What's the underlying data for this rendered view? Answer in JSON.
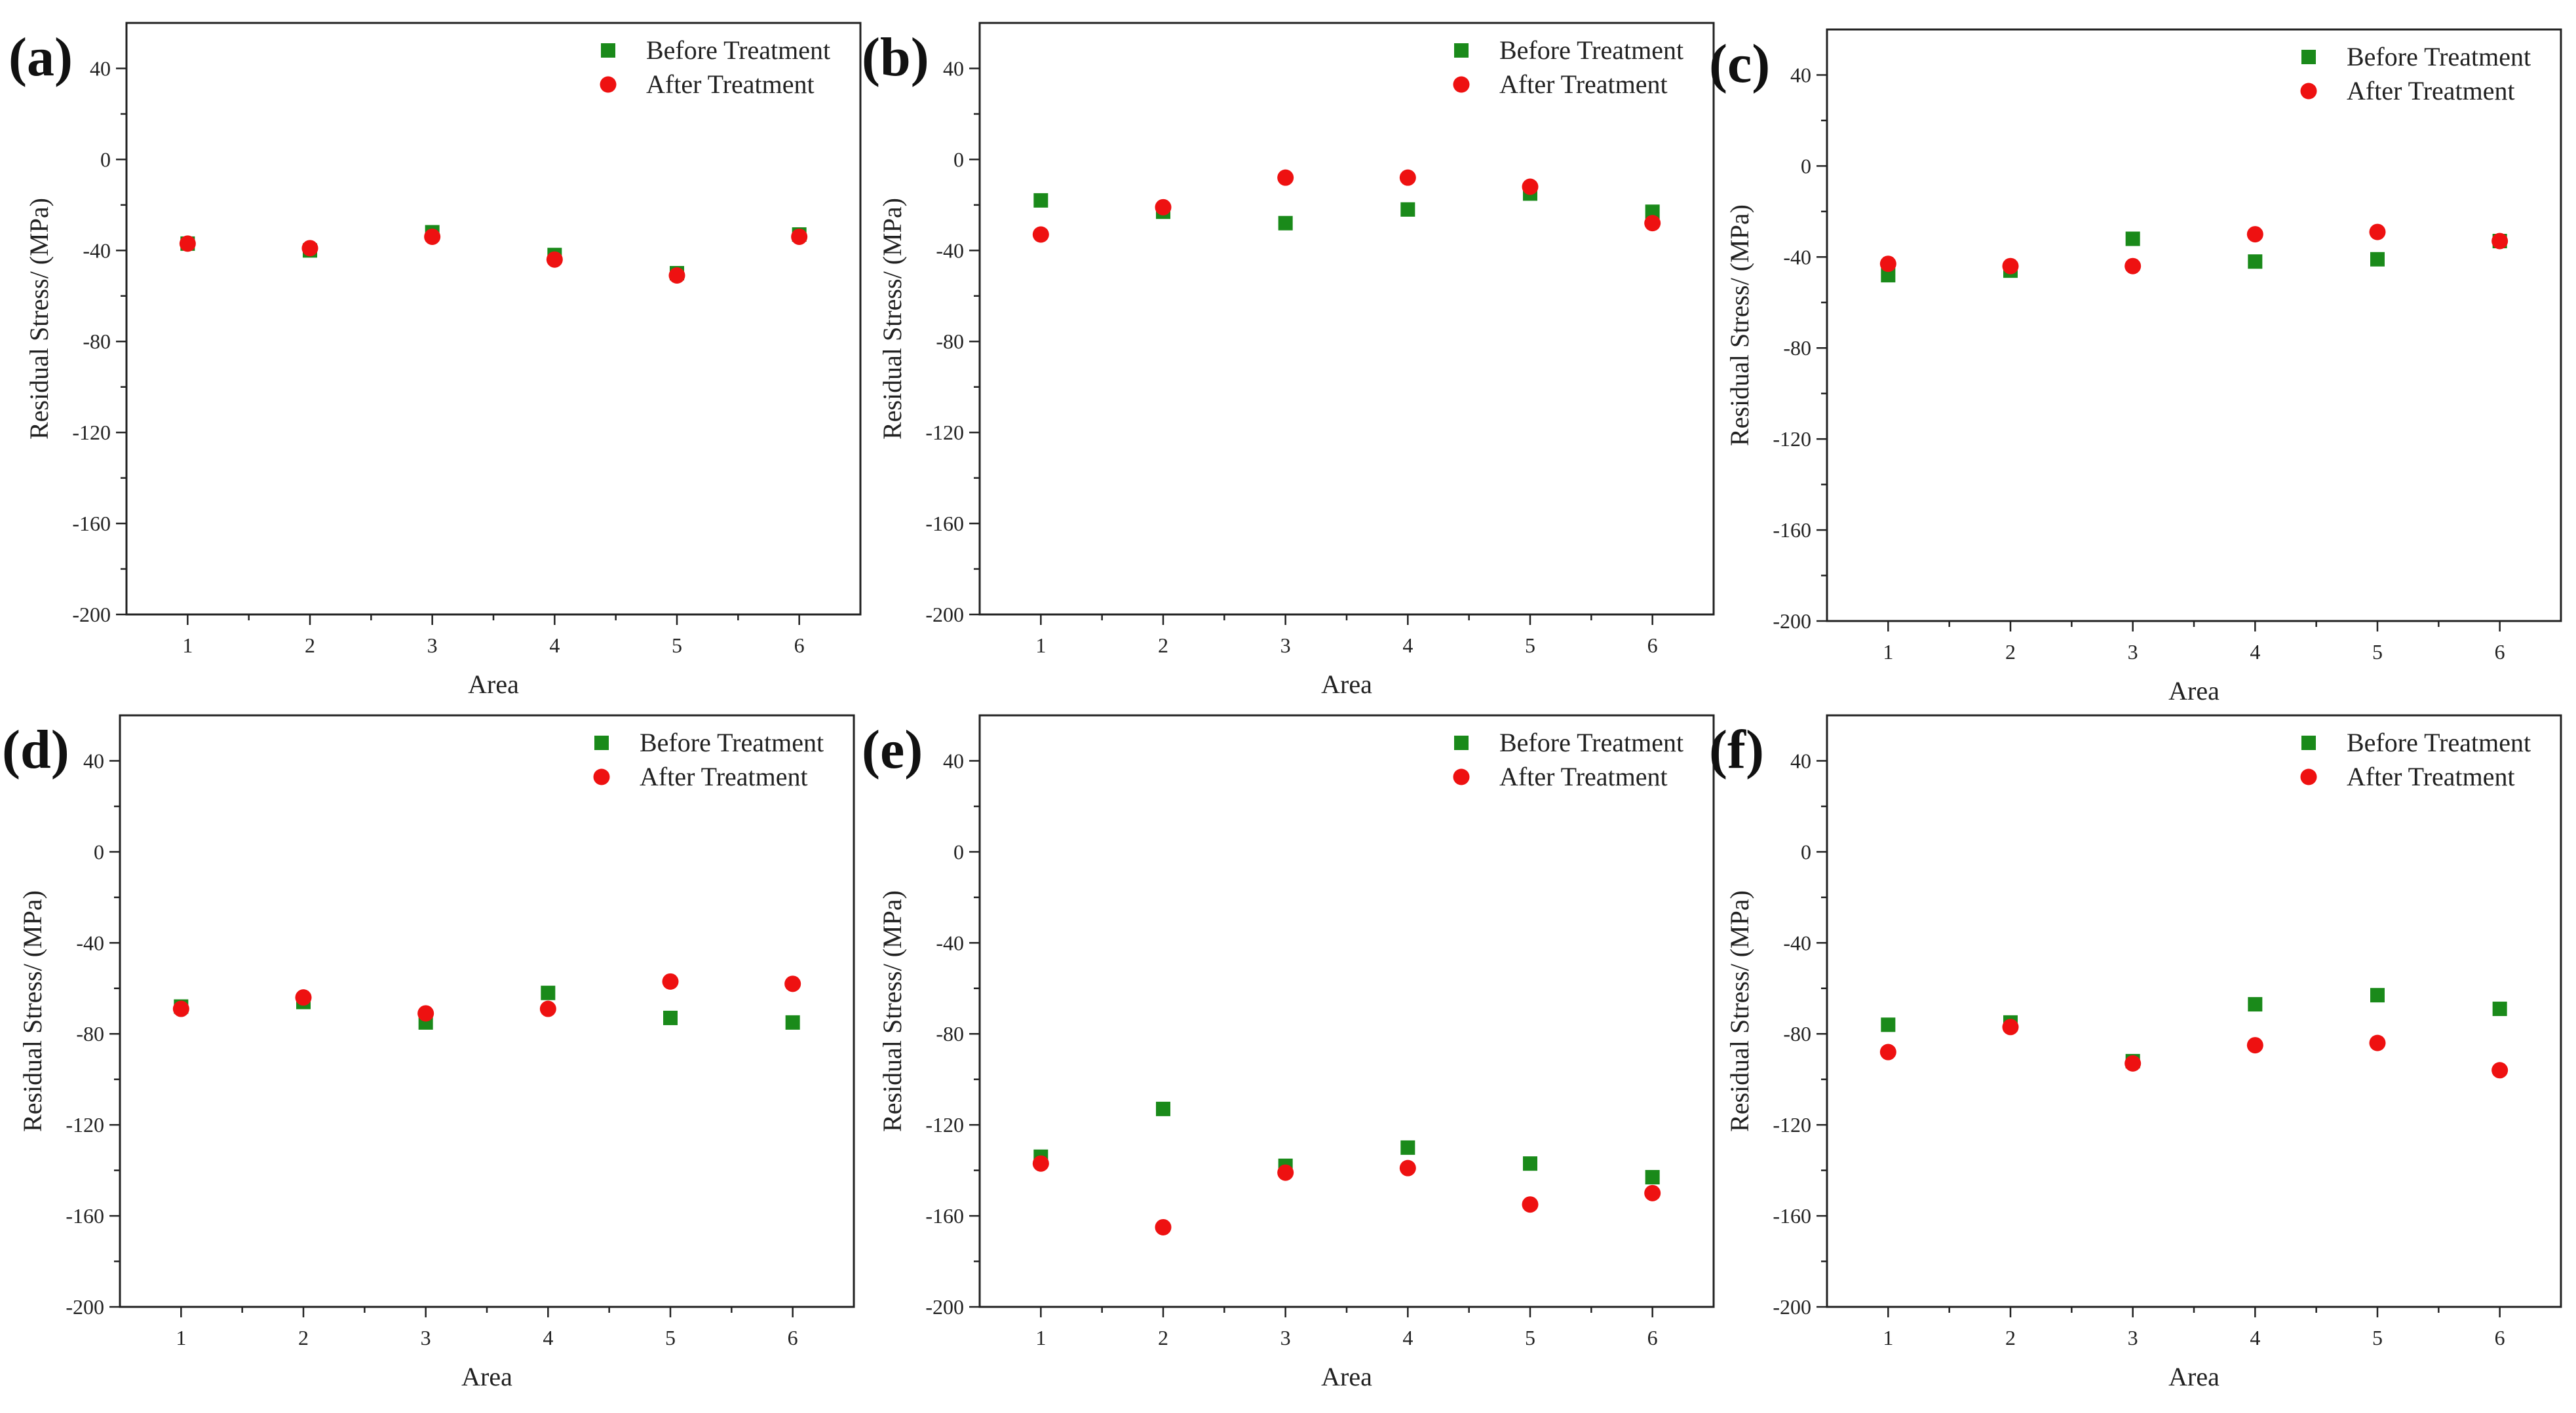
{
  "colors": {
    "before": "#1a8a1a",
    "after": "#ee1111"
  },
  "legend": {
    "before": "Before Treatment",
    "after": "After Treatment"
  },
  "chart_data": [
    {
      "label": "(a)",
      "type": "scatter",
      "xlabel": "Area",
      "ylabel": "Residual Stress/ (MPa)",
      "x": [
        1,
        2,
        3,
        4,
        5,
        6
      ],
      "xlim": [
        0.5,
        6.5
      ],
      "ylim": [
        -200,
        60
      ],
      "yticks": [
        40,
        0,
        -40,
        -80,
        -120,
        -160,
        -200
      ],
      "xticks": [
        1,
        2,
        3,
        4,
        5,
        6
      ],
      "series": [
        {
          "name": "Before Treatment",
          "marker": "square",
          "values": [
            -37,
            -40,
            -32,
            -42,
            -50,
            -33
          ]
        },
        {
          "name": "After Treatment",
          "marker": "circle",
          "values": [
            -37,
            -39,
            -34,
            -44,
            -51,
            -34
          ]
        }
      ]
    },
    {
      "label": "(b)",
      "type": "scatter",
      "xlabel": "Area",
      "ylabel": "Residual Stress/ (MPa)",
      "x": [
        1,
        2,
        3,
        4,
        5,
        6
      ],
      "xlim": [
        0.5,
        6.5
      ],
      "ylim": [
        -200,
        60
      ],
      "yticks": [
        40,
        0,
        -40,
        -80,
        -120,
        -160,
        -200
      ],
      "xticks": [
        1,
        2,
        3,
        4,
        5,
        6
      ],
      "series": [
        {
          "name": "Before Treatment",
          "marker": "square",
          "values": [
            -18,
            -23,
            -28,
            -22,
            -15,
            -23
          ]
        },
        {
          "name": "After Treatment",
          "marker": "circle",
          "values": [
            -33,
            -21,
            -8,
            -8,
            -12,
            -28
          ]
        }
      ]
    },
    {
      "label": "(c)",
      "type": "scatter",
      "xlabel": "Area",
      "ylabel": "Residual Stress/ (MPa)",
      "x": [
        1,
        2,
        3,
        4,
        5,
        6
      ],
      "xlim": [
        0.5,
        6.5
      ],
      "ylim": [
        -200,
        60
      ],
      "yticks": [
        40,
        0,
        -40,
        -80,
        -120,
        -160,
        -200
      ],
      "xticks": [
        1,
        2,
        3,
        4,
        5,
        6
      ],
      "series": [
        {
          "name": "Before Treatment",
          "marker": "square",
          "values": [
            -48,
            -46,
            -32,
            -42,
            -41,
            -33
          ]
        },
        {
          "name": "After Treatment",
          "marker": "circle",
          "values": [
            -43,
            -44,
            -44,
            -30,
            -29,
            -33
          ]
        }
      ]
    },
    {
      "label": "(d)",
      "type": "scatter",
      "xlabel": "Area",
      "ylabel": "Residual Stress/ (MPa)",
      "x": [
        1,
        2,
        3,
        4,
        5,
        6
      ],
      "xlim": [
        0.5,
        6.5
      ],
      "ylim": [
        -200,
        60
      ],
      "yticks": [
        40,
        0,
        -40,
        -80,
        -120,
        -160,
        -200
      ],
      "xticks": [
        1,
        2,
        3,
        4,
        5,
        6
      ],
      "series": [
        {
          "name": "Before Treatment",
          "marker": "square",
          "values": [
            -68,
            -66,
            -75,
            -62,
            -73,
            -75
          ]
        },
        {
          "name": "After Treatment",
          "marker": "circle",
          "values": [
            -69,
            -64,
            -71,
            -69,
            -57,
            -58
          ]
        }
      ]
    },
    {
      "label": "(e)",
      "type": "scatter",
      "xlabel": "Area",
      "ylabel": "Residual Stress/ (MPa)",
      "x": [
        1,
        2,
        3,
        4,
        5,
        6
      ],
      "xlim": [
        0.5,
        6.5
      ],
      "ylim": [
        -200,
        60
      ],
      "yticks": [
        40,
        0,
        -40,
        -80,
        -120,
        -160,
        -200
      ],
      "xticks": [
        1,
        2,
        3,
        4,
        5,
        6
      ],
      "series": [
        {
          "name": "Before Treatment",
          "marker": "square",
          "values": [
            -134,
            -113,
            -138,
            -130,
            -137,
            -143
          ]
        },
        {
          "name": "After Treatment",
          "marker": "circle",
          "values": [
            -137,
            -165,
            -141,
            -139,
            -155,
            -150
          ]
        }
      ]
    },
    {
      "label": "(f)",
      "type": "scatter",
      "xlabel": "Area",
      "ylabel": "Residual Stress/ (MPa)",
      "x": [
        1,
        2,
        3,
        4,
        5,
        6
      ],
      "xlim": [
        0.5,
        6.5
      ],
      "ylim": [
        -200,
        60
      ],
      "yticks": [
        40,
        0,
        -40,
        -80,
        -120,
        -160,
        -200
      ],
      "xticks": [
        1,
        2,
        3,
        4,
        5,
        6
      ],
      "series": [
        {
          "name": "Before Treatment",
          "marker": "square",
          "values": [
            -76,
            -75,
            -92,
            -67,
            -63,
            -69
          ]
        },
        {
          "name": "After Treatment",
          "marker": "circle",
          "values": [
            -88,
            -77,
            -93,
            -85,
            -84,
            -96
          ]
        }
      ]
    }
  ]
}
